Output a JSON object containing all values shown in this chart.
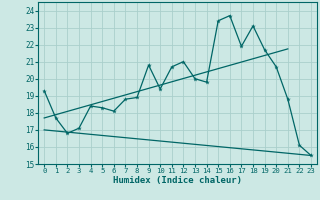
{
  "xlabel": "Humidex (Indice chaleur)",
  "bg_color": "#cce8e4",
  "grid_color": "#aacfcc",
  "line_color": "#006666",
  "xlim": [
    -0.5,
    23.5
  ],
  "ylim": [
    15,
    24.5
  ],
  "yticks": [
    15,
    16,
    17,
    18,
    19,
    20,
    21,
    22,
    23,
    24
  ],
  "xticks": [
    0,
    1,
    2,
    3,
    4,
    5,
    6,
    7,
    8,
    9,
    10,
    11,
    12,
    13,
    14,
    15,
    16,
    17,
    18,
    19,
    20,
    21,
    22,
    23
  ],
  "series1_x": [
    0,
    1,
    2,
    3,
    4,
    5,
    6,
    7,
    8,
    9,
    10,
    11,
    12,
    13,
    14,
    15,
    16,
    17,
    18,
    19,
    20,
    21,
    22,
    23
  ],
  "series1_y": [
    19.3,
    17.7,
    16.8,
    17.1,
    18.4,
    18.3,
    18.1,
    18.8,
    18.9,
    20.8,
    19.4,
    20.7,
    21.0,
    20.0,
    19.8,
    23.4,
    23.7,
    21.9,
    23.1,
    21.7,
    20.7,
    18.8,
    16.1,
    15.5
  ],
  "series2_x": [
    0,
    21
  ],
  "series2_y": [
    17.7,
    21.75
  ],
  "series3_x": [
    0,
    23
  ],
  "series3_y": [
    17.0,
    15.5
  ]
}
